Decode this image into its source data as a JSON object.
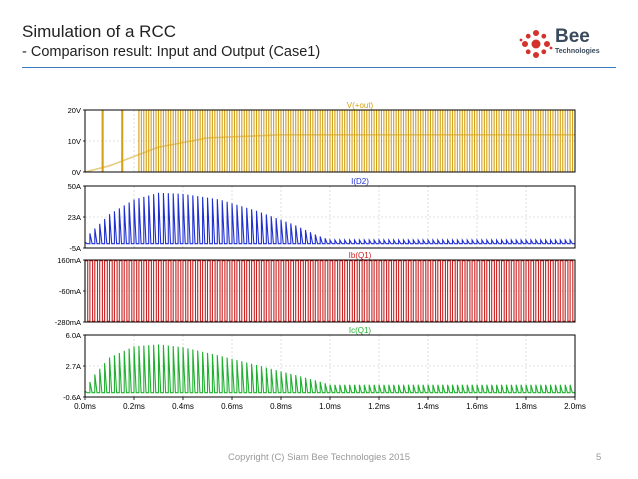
{
  "slide": {
    "title": "Simulation of a RCC",
    "subtitle": "- Comparison result: Input and Output (Case1)",
    "footer": "Copyright (C) Siam Bee Technologies 2015",
    "page_number": "5"
  },
  "logo": {
    "name": "Bee",
    "sub": "Technologies",
    "accent_color": "#d4322c",
    "text_color": "#3a4a5c"
  },
  "colors": {
    "plot_bg": "#ffffff",
    "grid": "#c8c8c8",
    "axis": "#000000"
  },
  "chart_data": {
    "type": "line",
    "xlabel": "",
    "x_range": [
      0,
      2.0
    ],
    "x_ticks": [
      "0.0ms",
      "0.2ms",
      "0.4ms",
      "0.6ms",
      "0.8ms",
      "1.0ms",
      "1.2ms",
      "1.4ms",
      "1.6ms",
      "1.8ms",
      "2.0ms"
    ],
    "panels": [
      {
        "name": "V(+out)",
        "color": "#d4a014",
        "y_range": [
          0,
          20
        ],
        "y_ticks": [
          "20V",
          "10V",
          "0V"
        ],
        "kind": "switching",
        "envelope_peak": 20,
        "envelope_min": 0,
        "avg_level": [
          [
            0.0,
            0
          ],
          [
            0.1,
            2
          ],
          [
            0.3,
            8
          ],
          [
            0.5,
            11
          ],
          [
            0.8,
            12
          ],
          [
            1.0,
            12
          ],
          [
            2.0,
            12
          ]
        ]
      },
      {
        "name": "I(D2)",
        "color": "#2030d0",
        "y_range": [
          -5,
          50
        ],
        "y_ticks": [
          "50A",
          "23A",
          "-5A"
        ],
        "kind": "pulses",
        "envelope": [
          [
            0.0,
            0
          ],
          [
            0.02,
            8
          ],
          [
            0.1,
            25
          ],
          [
            0.2,
            38
          ],
          [
            0.3,
            44
          ],
          [
            0.4,
            43
          ],
          [
            0.55,
            38
          ],
          [
            0.7,
            28
          ],
          [
            0.85,
            16
          ],
          [
            0.95,
            6
          ],
          [
            1.0,
            2
          ],
          [
            2.0,
            2
          ]
        ]
      },
      {
        "name": "Ib(Q1)",
        "color": "#cc2020",
        "y_range": [
          -280,
          160
        ],
        "y_ticks": [
          "160mA",
          "-60mA",
          "-280mA"
        ],
        "kind": "square",
        "high": 155,
        "low": -275
      },
      {
        "name": "Ic(Q1)",
        "color": "#20b030",
        "y_range": [
          -0.6,
          6.0
        ],
        "y_ticks": [
          "6.0A",
          "2.7A",
          "-0.6A"
        ],
        "kind": "pulses",
        "envelope": [
          [
            0.0,
            0
          ],
          [
            0.03,
            1.5
          ],
          [
            0.1,
            3.6
          ],
          [
            0.2,
            4.8
          ],
          [
            0.3,
            5.0
          ],
          [
            0.4,
            4.7
          ],
          [
            0.55,
            3.8
          ],
          [
            0.7,
            2.8
          ],
          [
            0.85,
            1.8
          ],
          [
            0.95,
            1.1
          ],
          [
            1.0,
            0.7
          ],
          [
            2.0,
            0.7
          ]
        ]
      }
    ]
  }
}
